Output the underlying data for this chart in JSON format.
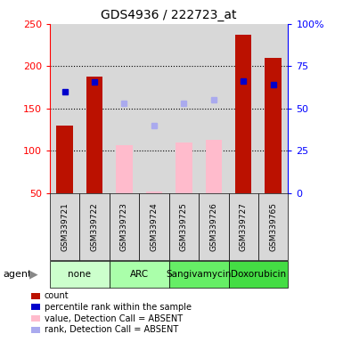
{
  "title": "GDS4936 / 222723_at",
  "samples": [
    "GSM339721",
    "GSM339722",
    "GSM339723",
    "GSM339724",
    "GSM339725",
    "GSM339726",
    "GSM339727",
    "GSM339765"
  ],
  "agents": [
    {
      "label": "none",
      "color": "#ccffcc",
      "samples": [
        0,
        1
      ]
    },
    {
      "label": "ARC",
      "color": "#aaffaa",
      "samples": [
        2,
        3
      ]
    },
    {
      "label": "Sangivamycin",
      "color": "#66ee66",
      "samples": [
        4,
        5
      ]
    },
    {
      "label": "Doxorubicin",
      "color": "#44dd44",
      "samples": [
        6,
        7
      ]
    }
  ],
  "bar_values": [
    130,
    188,
    null,
    null,
    null,
    null,
    237,
    210
  ],
  "bar_absent_values": [
    null,
    null,
    107,
    52,
    110,
    113,
    null,
    null
  ],
  "bar_color_present": "#bb1100",
  "bar_color_absent": "#ffbbcc",
  "percentile_rank_present": [
    170,
    181,
    null,
    null,
    null,
    null,
    183,
    178
  ],
  "percentile_rank_absent": [
    null,
    null,
    156,
    130,
    156,
    160,
    null,
    null
  ],
  "dot_color_present": "#0000cc",
  "dot_color_absent": "#aaaaee",
  "ylim": [
    50,
    250
  ],
  "yticks": [
    50,
    100,
    150,
    200,
    250
  ],
  "y2lim": [
    0,
    100
  ],
  "y2ticks": [
    0,
    25,
    50,
    75,
    100
  ],
  "grid_values": [
    100,
    150,
    200
  ],
  "col_bg": "#d8d8d8",
  "legend_items": [
    {
      "label": "count",
      "color": "#bb1100"
    },
    {
      "label": "percentile rank within the sample",
      "color": "#0000cc"
    },
    {
      "label": "value, Detection Call = ABSENT",
      "color": "#ffbbcc"
    },
    {
      "label": "rank, Detection Call = ABSENT",
      "color": "#aaaaee"
    }
  ]
}
